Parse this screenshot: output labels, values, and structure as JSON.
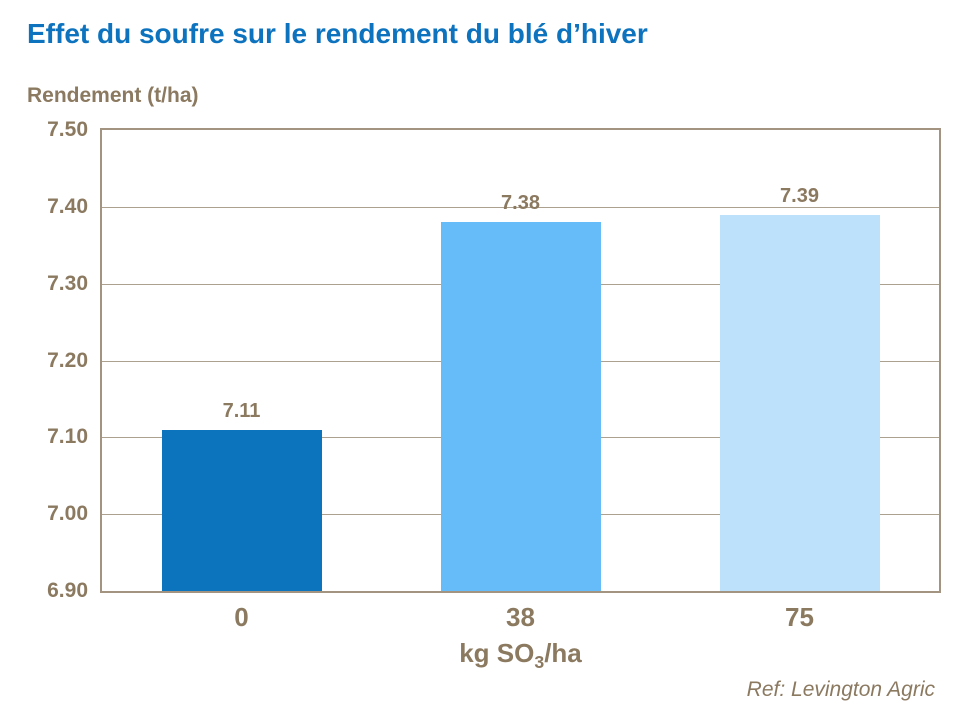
{
  "chart_data": {
    "type": "bar",
    "title": "Effet du soufre sur le rendement du blé d’hiver",
    "ylabel": "Rendement (t/ha)",
    "xlabel": {
      "prefix": "kg SO",
      "subscript": "3",
      "suffix": "/ha"
    },
    "categories": [
      "0",
      "38",
      "75"
    ],
    "values": [
      7.11,
      7.38,
      7.39
    ],
    "value_labels": [
      "7.11",
      "7.38",
      "7.39"
    ],
    "bar_colors": [
      "#0B74BC",
      "#66BBF9",
      "#BDE0FB"
    ],
    "ylim": [
      6.9,
      7.5
    ],
    "ytick_step": 0.1,
    "yticks": [
      "7.50",
      "7.40",
      "7.30",
      "7.20",
      "7.10",
      "7.00",
      "6.90"
    ],
    "grid": true,
    "legend_position": "none",
    "source": "Ref: Levington Agric",
    "colors": {
      "title_text": "#0D73BE",
      "axis_text": "#8B7960",
      "frame_border": "#A39381",
      "gridline": "#ACA08F",
      "background": "#FFFFFF"
    }
  }
}
